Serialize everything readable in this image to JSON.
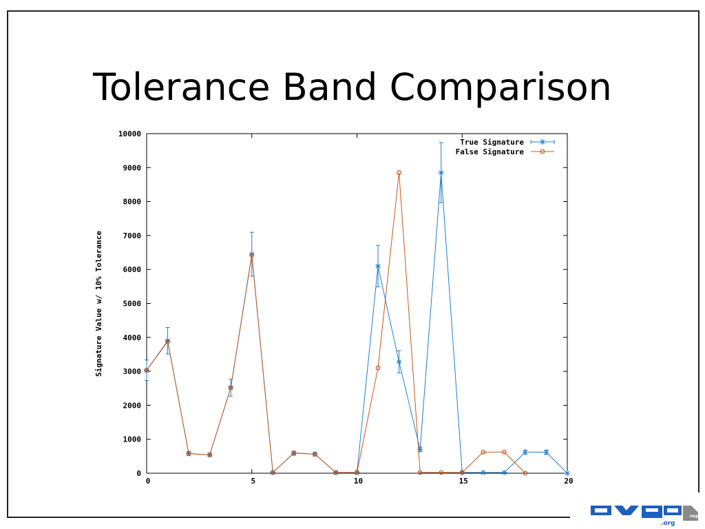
{
  "slide": {
    "title": "Tolerance Band Comparison"
  },
  "logo": {
    "text": ".org",
    "badge": "nap"
  },
  "colors": {
    "true_series": "#1e7ecf",
    "false_series": "#c8581a"
  },
  "chart_data": {
    "type": "line",
    "ylabel": "Signature Value w/ 10% Tolerance",
    "xlabel": "",
    "xlim": [
      0,
      20
    ],
    "ylim": [
      0,
      10000
    ],
    "xticks": [
      0,
      5,
      10,
      15,
      20
    ],
    "yticks": [
      0,
      1000,
      2000,
      3000,
      4000,
      5000,
      6000,
      7000,
      8000,
      9000,
      10000
    ],
    "grid": false,
    "legend": "top-right",
    "series": [
      {
        "name": "True Signature",
        "marker": "asterisk",
        "error_bars": "10%",
        "x": [
          0,
          1,
          2,
          3,
          4,
          5,
          6,
          7,
          8,
          9,
          10,
          11,
          12,
          13,
          14,
          15,
          16,
          17,
          18,
          19,
          20
        ],
        "values": [
          3030,
          3900,
          580,
          540,
          2520,
          6450,
          20,
          590,
          560,
          20,
          20,
          6100,
          3280,
          700,
          8850,
          20,
          20,
          20,
          620,
          620,
          0
        ]
      },
      {
        "name": "False Signature",
        "marker": "circle",
        "x": [
          0,
          1,
          2,
          3,
          4,
          5,
          6,
          7,
          8,
          9,
          10,
          11,
          12,
          13,
          14,
          15,
          16,
          17,
          18
        ],
        "values": [
          3030,
          3880,
          580,
          540,
          2520,
          6420,
          20,
          600,
          560,
          20,
          20,
          3100,
          8850,
          20,
          20,
          20,
          620,
          620,
          0
        ]
      }
    ]
  }
}
